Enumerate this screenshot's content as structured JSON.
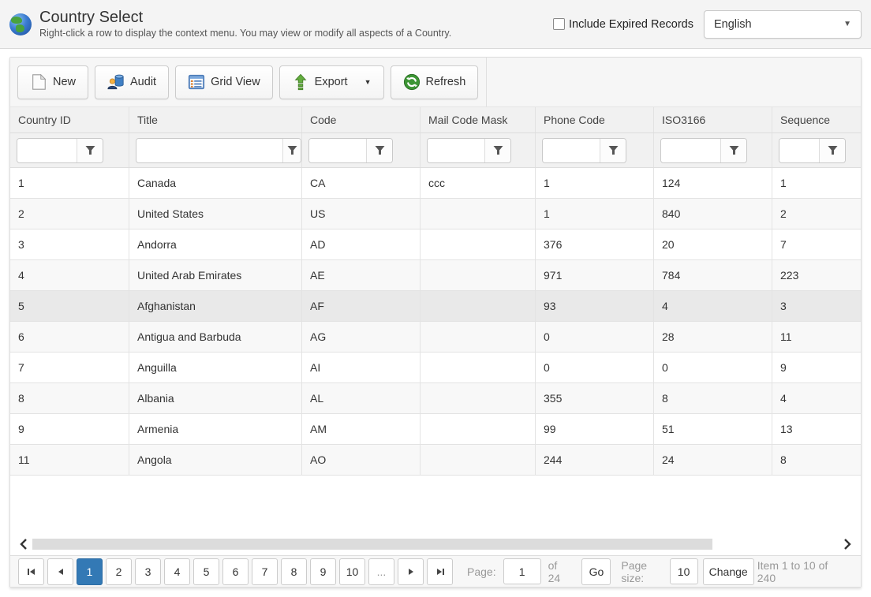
{
  "header": {
    "title": "Country Select",
    "subtitle": "Right-click a row to display the context menu. You may view or modify all aspects of a Country.",
    "include_expired_label": "Include Expired Records",
    "include_expired_checked": false,
    "language_selected": "English",
    "app_icon": "globe-icon"
  },
  "toolbar": {
    "buttons": [
      {
        "label": "New",
        "icon": "new-document-icon",
        "has_dropdown": false
      },
      {
        "label": "Audit",
        "icon": "audit-icon",
        "has_dropdown": false
      },
      {
        "label": "Grid View",
        "icon": "grid-view-icon",
        "has_dropdown": false
      },
      {
        "label": "Export",
        "icon": "export-icon",
        "has_dropdown": true
      },
      {
        "label": "Refresh",
        "icon": "refresh-icon",
        "has_dropdown": false
      }
    ]
  },
  "grid": {
    "columns": [
      "Country ID",
      "Title",
      "Code",
      "Mail Code Mask",
      "Phone Code",
      "ISO3166",
      "Sequence"
    ],
    "filter_values": [
      "",
      "",
      "",
      "",
      "",
      "",
      ""
    ],
    "filter_icon": "filter-funnel-icon",
    "rows": [
      [
        "1",
        "Canada",
        "CA",
        "ccc",
        "1",
        "124",
        "1"
      ],
      [
        "2",
        "United States",
        "US",
        "",
        "1",
        "840",
        "2"
      ],
      [
        "3",
        "Andorra",
        "AD",
        "",
        "376",
        "20",
        "7"
      ],
      [
        "4",
        "United Arab Emirates",
        "AE",
        "",
        "971",
        "784",
        "223"
      ],
      [
        "5",
        "Afghanistan",
        "AF",
        "",
        "93",
        "4",
        "3"
      ],
      [
        "6",
        "Antigua and Barbuda",
        "AG",
        "",
        "0",
        "28",
        "11"
      ],
      [
        "7",
        "Anguilla",
        "AI",
        "",
        "0",
        "0",
        "9"
      ],
      [
        "8",
        "Albania",
        "AL",
        "",
        "355",
        "8",
        "4"
      ],
      [
        "9",
        "Armenia",
        "AM",
        "",
        "99",
        "51",
        "13"
      ],
      [
        "11",
        "Angola",
        "AO",
        "",
        "244",
        "24",
        "8"
      ]
    ],
    "selected_row_index": 4
  },
  "scrollbar": {
    "left_icon": "scroll-left-icon",
    "right_icon": "scroll-right-icon"
  },
  "pager": {
    "nav_icons": [
      "first-page-icon",
      "prev-page-icon",
      "next-page-icon",
      "last-page-icon"
    ],
    "pages": [
      "1",
      "2",
      "3",
      "4",
      "5",
      "6",
      "7",
      "8",
      "9",
      "10"
    ],
    "active_page": "1",
    "ellipsis": "...",
    "page_label": "Page:",
    "page_input": "1",
    "of_label": "of 24",
    "go_label": "Go",
    "page_size_label": "Page size:",
    "page_size_input": "10",
    "change_label": "Change",
    "items_label": "Item 1 to 10 of 240"
  },
  "colors": {
    "accent_blue": "#3379b5",
    "selected_row": "#e9e9e9",
    "panel_gray": "#f6f6f6",
    "header_gray": "#f1f1f1"
  }
}
